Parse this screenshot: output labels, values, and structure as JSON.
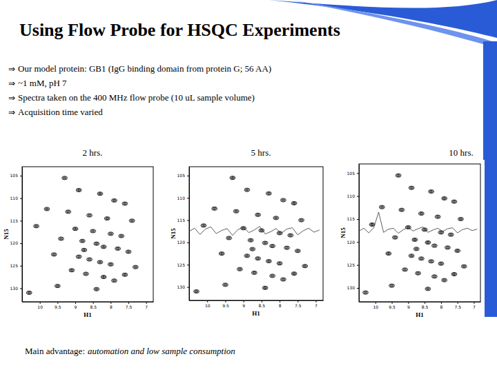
{
  "slide": {
    "title": "Using Flow Probe for HSQC Experiments",
    "bullet": "⇒",
    "bullets": [
      "Our model protein: GB1 (IgG binding domain from protein G; 56 AA)",
      "~1 mM,  pH 7",
      "Spectra taken on the 400 MHz flow probe (10 uL sample volume)",
      "Acquisition time varied"
    ],
    "footer": {
      "label": "Main advantage:",
      "text": "automation and low sample consumption"
    }
  },
  "chart_data": [
    {
      "type": "scatter",
      "title": "2 hrs.",
      "x_label": "H1",
      "y_label": "N15",
      "xlim": [
        10.5,
        6.8
      ],
      "ylim": [
        133,
        103
      ],
      "xticks": [
        10,
        9.5,
        9,
        8.5,
        8,
        7.5,
        7
      ],
      "yticks": [
        105,
        110,
        115,
        120,
        125,
        130
      ],
      "series": [
        {
          "type": "scatter",
          "marker": "contour",
          "color": "#000000",
          "x": [
            9.3,
            8.9,
            8.3,
            7.9,
            7.6,
            9.8,
            9.2,
            8.6,
            8.1,
            7.4,
            10.1,
            9.0,
            8.5,
            8.0,
            7.7,
            9.4,
            8.8,
            8.4,
            8.2,
            7.8,
            7.5,
            9.6,
            8.9,
            8.6,
            8.3,
            8.0,
            7.3,
            9.1,
            8.7,
            8.2,
            7.9,
            9.5,
            8.4,
            10.3,
            7.6,
            8.75
          ],
          "values": [
            105.5,
            108.2,
            109.0,
            110.5,
            111.2,
            112.4,
            113.0,
            113.8,
            114.5,
            115.0,
            116.2,
            116.8,
            117.3,
            117.9,
            118.4,
            119.0,
            119.5,
            120.1,
            120.8,
            121.2,
            121.9,
            122.5,
            123.0,
            123.6,
            124.2,
            124.7,
            125.3,
            126.0,
            126.8,
            127.5,
            128.3,
            129.5,
            130.2,
            131.0,
            127.0,
            121.5
          ]
        }
      ]
    },
    {
      "type": "scatter",
      "title": "5 hrs.",
      "x_label": "H1",
      "y_label": "N15",
      "xlim": [
        10.5,
        6.8
      ],
      "ylim": [
        133,
        103
      ],
      "xticks": [
        10,
        9.5,
        9,
        8.5,
        8,
        7.5,
        7
      ],
      "yticks": [
        105,
        110,
        115,
        120,
        125,
        130
      ],
      "series": [
        {
          "type": "scatter",
          "marker": "contour",
          "color": "#000000",
          "x": [
            9.3,
            8.9,
            8.3,
            7.9,
            7.6,
            9.8,
            9.2,
            8.6,
            8.1,
            7.4,
            10.1,
            9.0,
            8.5,
            8.0,
            7.7,
            9.4,
            8.8,
            8.4,
            8.2,
            7.8,
            7.5,
            9.6,
            8.9,
            8.6,
            8.3,
            8.0,
            7.3,
            9.1,
            8.7,
            8.2,
            7.9,
            9.5,
            8.4,
            10.3,
            7.6,
            8.75
          ],
          "values": [
            105.5,
            108.2,
            109.0,
            110.5,
            111.2,
            112.4,
            113.0,
            113.8,
            114.5,
            115.0,
            116.2,
            116.8,
            117.3,
            117.9,
            118.4,
            119.0,
            119.5,
            120.1,
            120.8,
            121.2,
            121.9,
            122.5,
            123.0,
            123.6,
            124.2,
            124.7,
            125.3,
            126.0,
            126.8,
            127.5,
            128.3,
            129.5,
            130.2,
            131.0,
            127.0,
            121.5
          ]
        },
        {
          "type": "line",
          "color": "#333333",
          "x": [
            10.5,
            10.35,
            10.2,
            10.05,
            9.9,
            9.75,
            9.6,
            9.45,
            9.3,
            9.15,
            9.0,
            8.85,
            8.7,
            8.55,
            8.4,
            8.25,
            8.1,
            7.95,
            7.8,
            7.65,
            7.5,
            7.35,
            7.2,
            7.05,
            6.9
          ],
          "values": [
            117.5,
            116.8,
            118.2,
            117.0,
            116.5,
            118.0,
            117.3,
            116.9,
            118.4,
            117.1,
            116.6,
            117.8,
            117.2,
            116.4,
            118.1,
            117.6,
            116.9,
            117.9,
            117.0,
            116.7,
            118.3,
            117.4,
            116.8,
            117.7,
            117.2
          ]
        }
      ]
    },
    {
      "type": "scatter",
      "title": "10 hrs.",
      "x_label": "H1",
      "y_label": "N15",
      "xlim": [
        10.5,
        6.8
      ],
      "ylim": [
        133,
        103
      ],
      "xticks": [
        10,
        9.5,
        9,
        8.5,
        8,
        7.5,
        7
      ],
      "yticks": [
        105,
        110,
        115,
        120,
        125,
        130
      ],
      "series": [
        {
          "type": "scatter",
          "marker": "contour",
          "color": "#000000",
          "x": [
            9.3,
            8.9,
            8.3,
            7.9,
            7.6,
            9.8,
            9.2,
            8.6,
            8.1,
            7.4,
            10.1,
            9.0,
            8.5,
            8.0,
            7.7,
            9.4,
            8.8,
            8.4,
            8.2,
            7.8,
            7.5,
            9.6,
            8.9,
            8.6,
            8.3,
            8.0,
            7.3,
            9.1,
            8.7,
            8.2,
            7.9,
            9.5,
            8.4,
            10.3,
            7.6,
            8.75
          ],
          "values": [
            105.5,
            108.2,
            109.0,
            110.5,
            111.2,
            112.4,
            113.0,
            113.8,
            114.5,
            115.0,
            116.2,
            116.8,
            117.3,
            117.9,
            118.4,
            119.0,
            119.5,
            120.1,
            120.8,
            121.2,
            121.9,
            122.5,
            123.0,
            123.6,
            124.2,
            124.7,
            125.3,
            126.0,
            126.8,
            127.5,
            128.3,
            129.5,
            130.2,
            131.0,
            127.0,
            121.5
          ]
        },
        {
          "type": "line",
          "color": "#333333",
          "x": [
            10.5,
            10.35,
            10.2,
            10.05,
            9.9,
            9.75,
            9.6,
            9.45,
            9.3,
            9.15,
            9.0,
            8.85,
            8.7,
            8.55,
            8.4,
            8.25,
            8.1,
            7.95,
            7.8,
            7.65,
            7.5,
            7.35,
            7.2,
            7.05,
            6.9
          ],
          "values": [
            117.6,
            117.0,
            118.0,
            116.9,
            113.5,
            117.9,
            117.2,
            117.0,
            118.1,
            117.3,
            116.8,
            117.6,
            117.1,
            116.7,
            117.9,
            117.4,
            117.0,
            117.7,
            117.1,
            116.9,
            118.0,
            117.3,
            117.0,
            117.5,
            117.2
          ]
        }
      ]
    }
  ]
}
